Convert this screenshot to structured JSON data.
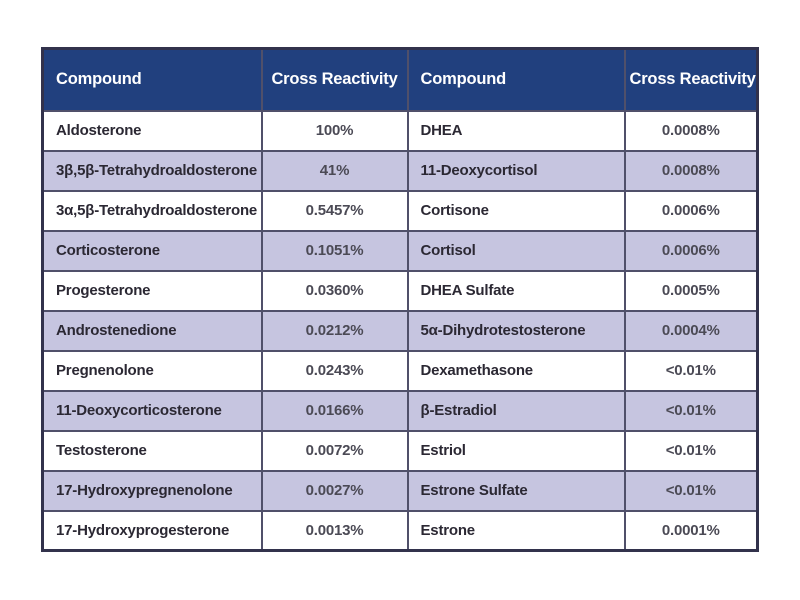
{
  "page": {
    "background": "#ffffff"
  },
  "table": {
    "columns": [
      "Compound",
      "Cross Reactivity",
      "Compound",
      "Cross Reactivity"
    ],
    "rows": [
      [
        "Aldosterone",
        "100%",
        "DHEA",
        "0.0008%"
      ],
      [
        "3β,5β-Tetrahydroaldosterone",
        "41%",
        "11-Deoxycortisol",
        "0.0008%"
      ],
      [
        "3α,5β-Tetrahydroaldosterone",
        "0.5457%",
        "Cortisone",
        "0.0006%"
      ],
      [
        "Corticosterone",
        "0.1051%",
        "Cortisol",
        "0.0006%"
      ],
      [
        "Progesterone",
        "0.0360%",
        "DHEA Sulfate",
        "0.0005%"
      ],
      [
        "Androstenedione",
        "0.0212%",
        "5α-Dihydrotestosterone",
        "0.0004%"
      ],
      [
        "Pregnenolone",
        "0.0243%",
        "Dexamethasone",
        "<0.01%"
      ],
      [
        "11-Deoxycorticosterone",
        "0.0166%",
        "β-Estradiol",
        "<0.01%"
      ],
      [
        "Testosterone",
        "0.0072%",
        "Estriol",
        "<0.01%"
      ],
      [
        "17-Hydroxypregnenolone",
        "0.0027%",
        "Estrone Sulfate",
        "<0.01%"
      ],
      [
        "17-Hydroxyprogesterone",
        "0.0013%",
        "Estrone",
        "0.0001%"
      ]
    ],
    "colors": {
      "header_bg": "#21407e",
      "header_text": "#ffffff",
      "row_even_bg": "#ffffff",
      "row_odd_bg": "#c6c5e0",
      "border": "#50506a",
      "outer_border": "#32324c",
      "compound_text": "#2b2833",
      "value_text": "#4b4a55",
      "page_bg": "#ffffff"
    }
  }
}
